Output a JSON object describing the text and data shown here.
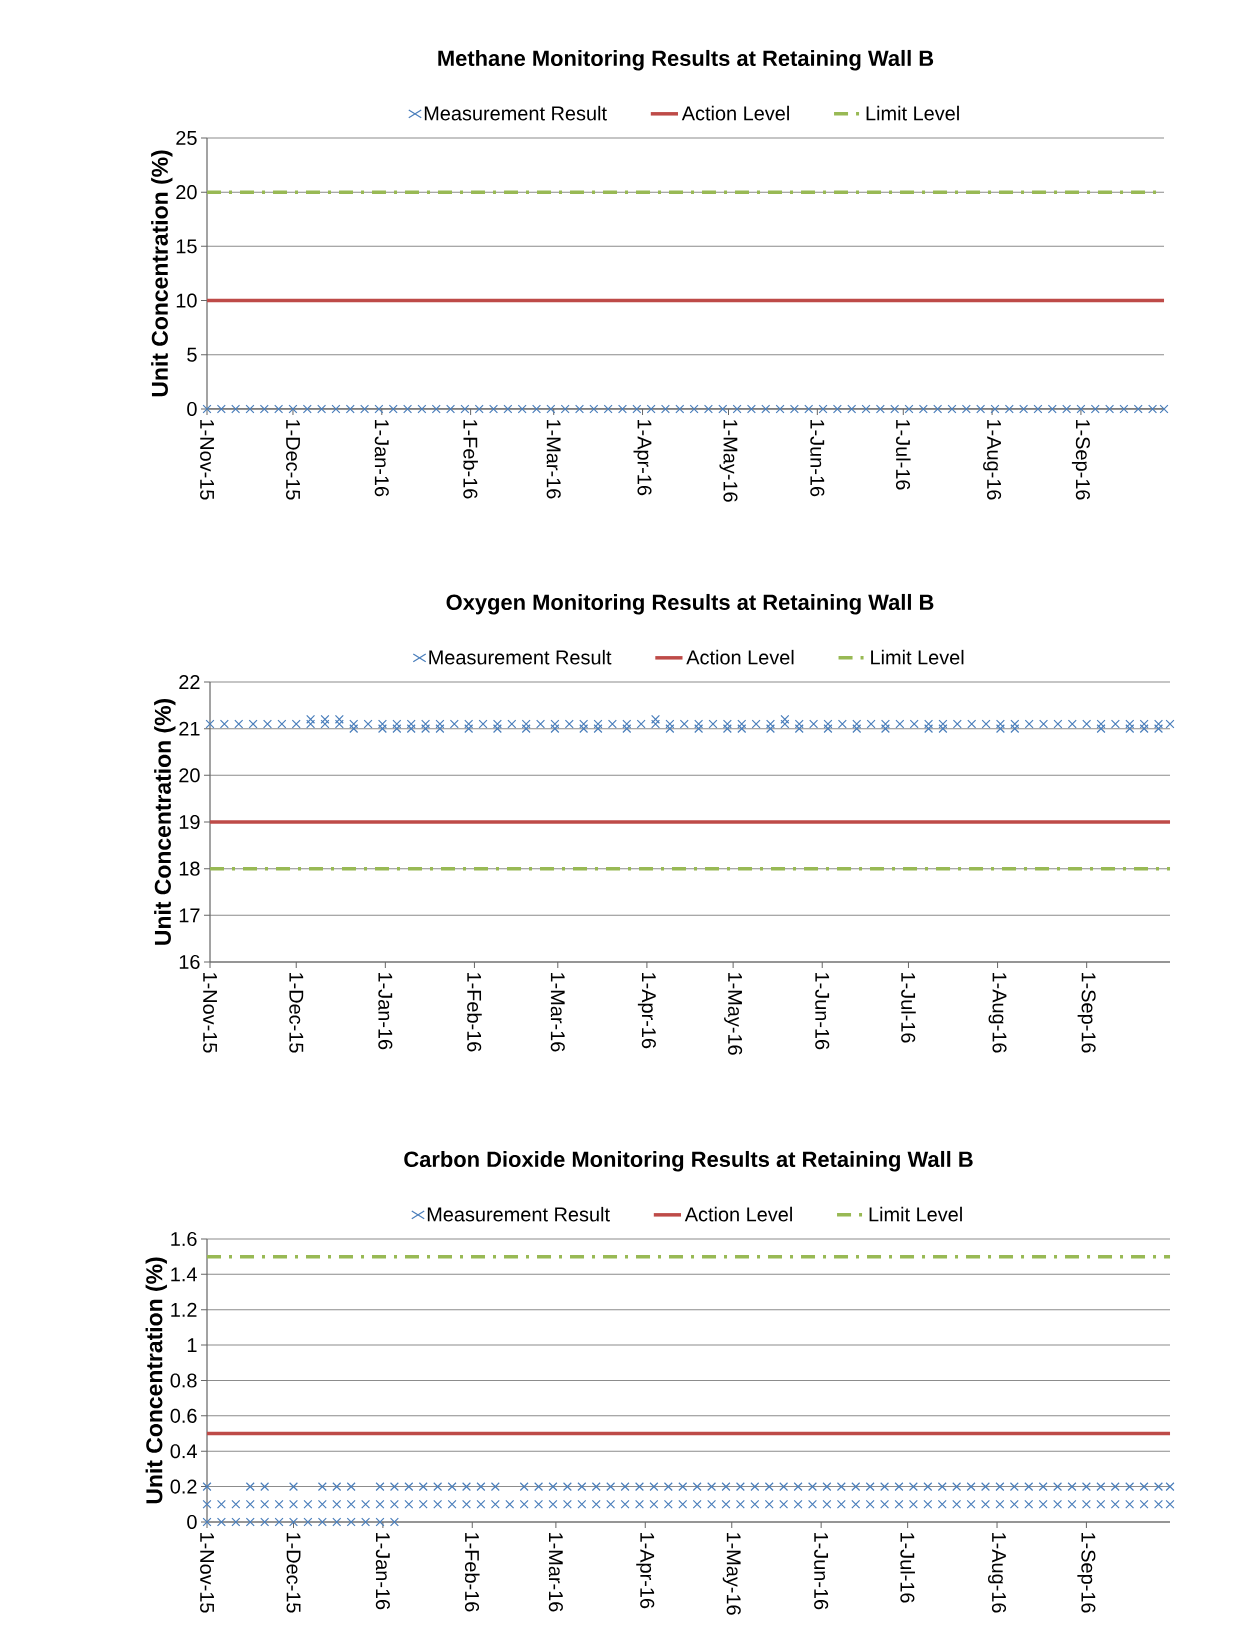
{
  "chart_data": [
    {
      "type": "scatter",
      "title": "Methane Monitoring Results at Retaining Wall B",
      "ylabel": "Unit Concentration (%)",
      "legend": "top",
      "grid": "y",
      "xlim": [
        "2015-11-01",
        "2016-09-30"
      ],
      "ylim": [
        0,
        25
      ],
      "yticks": [
        0,
        5,
        10,
        15,
        20,
        25
      ],
      "xticks": [
        {
          "value": "2015-11-01",
          "label": "1-Nov-15"
        },
        {
          "value": "2015-12-01",
          "label": "1-Dec-15"
        },
        {
          "value": "2016-01-01",
          "label": "1-Jan-16"
        },
        {
          "value": "2016-02-01",
          "label": "1-Feb-16"
        },
        {
          "value": "2016-03-01",
          "label": "1-Mar-16"
        },
        {
          "value": "2016-04-01",
          "label": "1-Apr-16"
        },
        {
          "value": "2016-05-01",
          "label": "1-May-16"
        },
        {
          "value": "2016-06-01",
          "label": "1-Jun-16"
        },
        {
          "value": "2016-07-01",
          "label": "1-Jul-16"
        },
        {
          "value": "2016-08-01",
          "label": "1-Aug-16"
        },
        {
          "value": "2016-09-01",
          "label": "1-Sep-16"
        }
      ],
      "series": [
        {
          "name": "Measurement Result",
          "color": "#4a7ebb",
          "marker": "cross",
          "x": [
            "2015-11-01",
            "2015-11-06",
            "2015-11-11",
            "2015-11-16",
            "2015-11-21",
            "2015-11-26",
            "2015-12-01",
            "2015-12-06",
            "2015-12-11",
            "2015-12-16",
            "2015-12-21",
            "2015-12-26",
            "2015-12-31",
            "2016-01-05",
            "2016-01-10",
            "2016-01-15",
            "2016-01-20",
            "2016-01-25",
            "2016-01-30",
            "2016-02-04",
            "2016-02-09",
            "2016-02-14",
            "2016-02-19",
            "2016-02-24",
            "2016-02-29",
            "2016-03-05",
            "2016-03-10",
            "2016-03-15",
            "2016-03-20",
            "2016-03-25",
            "2016-03-30",
            "2016-04-04",
            "2016-04-09",
            "2016-04-14",
            "2016-04-19",
            "2016-04-24",
            "2016-04-29",
            "2016-05-04",
            "2016-05-09",
            "2016-05-14",
            "2016-05-19",
            "2016-05-24",
            "2016-05-29",
            "2016-06-03",
            "2016-06-08",
            "2016-06-13",
            "2016-06-18",
            "2016-06-23",
            "2016-06-28",
            "2016-07-03",
            "2016-07-08",
            "2016-07-13",
            "2016-07-18",
            "2016-07-23",
            "2016-07-28",
            "2016-08-02",
            "2016-08-07",
            "2016-08-12",
            "2016-08-17",
            "2016-08-22",
            "2016-08-27",
            "2016-09-01",
            "2016-09-06",
            "2016-09-11",
            "2016-09-16",
            "2016-09-21",
            "2016-09-26",
            "2016-09-30"
          ],
          "values": [
            0,
            0,
            0,
            0,
            0,
            0,
            0,
            0,
            0,
            0,
            0,
            0,
            0,
            0,
            0,
            0,
            0,
            0,
            0,
            0,
            0,
            0,
            0,
            0,
            0,
            0,
            0,
            0,
            0,
            0,
            0,
            0,
            0,
            0,
            0,
            0,
            0,
            0,
            0,
            0,
            0,
            0,
            0,
            0,
            0,
            0,
            0,
            0,
            0,
            0,
            0,
            0,
            0,
            0,
            0,
            0,
            0,
            0,
            0,
            0,
            0,
            0,
            0,
            0,
            0,
            0,
            0,
            0
          ]
        },
        {
          "name": "Action Level",
          "type": "line",
          "color": "#be4b48",
          "line_style": "solid",
          "x": [
            "2015-11-01",
            "2016-09-30"
          ],
          "values": [
            10,
            10
          ]
        },
        {
          "name": "Limit Level",
          "type": "line",
          "color": "#98b954",
          "line_style": "dashed",
          "x": [
            "2015-11-01",
            "2016-09-30"
          ],
          "values": [
            20,
            20
          ]
        }
      ]
    },
    {
      "type": "scatter",
      "title": "Oxygen Monitoring Results at Retaining Wall B",
      "ylabel": "Unit Concentration (%)",
      "legend": "top",
      "grid": "y",
      "xlim": [
        "2015-11-01",
        "2016-09-30"
      ],
      "ylim": [
        16,
        22
      ],
      "yticks": [
        16,
        17,
        18,
        19,
        20,
        21,
        22
      ],
      "xticks": [
        {
          "value": "2015-11-01",
          "label": "1-Nov-15"
        },
        {
          "value": "2015-12-01",
          "label": "1-Dec-15"
        },
        {
          "value": "2016-01-01",
          "label": "1-Jan-16"
        },
        {
          "value": "2016-02-01",
          "label": "1-Feb-16"
        },
        {
          "value": "2016-03-01",
          "label": "1-Mar-16"
        },
        {
          "value": "2016-04-01",
          "label": "1-Apr-16"
        },
        {
          "value": "2016-05-01",
          "label": "1-May-16"
        },
        {
          "value": "2016-06-01",
          "label": "1-Jun-16"
        },
        {
          "value": "2016-07-01",
          "label": "1-Jul-16"
        },
        {
          "value": "2016-08-01",
          "label": "1-Aug-16"
        },
        {
          "value": "2016-09-01",
          "label": "1-Sep-16"
        }
      ],
      "series": [
        {
          "name": "Measurement Result",
          "type": "scatter",
          "color": "#4a7ebb",
          "marker": "cross",
          "x": [
            "2015-11-01",
            "2015-11-06",
            "2015-11-11",
            "2015-11-16",
            "2015-11-21",
            "2015-11-26",
            "2015-12-01",
            "2015-12-06",
            "2015-12-11",
            "2015-12-16",
            "2015-12-21",
            "2015-12-26",
            "2015-12-31",
            "2016-01-05",
            "2016-01-10",
            "2016-01-15",
            "2016-01-20",
            "2016-01-25",
            "2016-01-30",
            "2016-02-04",
            "2016-02-09",
            "2016-02-14",
            "2016-02-19",
            "2016-02-24",
            "2016-02-29",
            "2016-03-05",
            "2016-03-10",
            "2016-03-15",
            "2016-03-20",
            "2016-03-25",
            "2016-03-30",
            "2016-04-04",
            "2016-04-09",
            "2016-04-14",
            "2016-04-19",
            "2016-04-24",
            "2016-04-29",
            "2016-05-04",
            "2016-05-09",
            "2016-05-14",
            "2016-05-19",
            "2016-05-24",
            "2016-05-29",
            "2016-06-03",
            "2016-06-08",
            "2016-06-13",
            "2016-06-18",
            "2016-06-23",
            "2016-06-28",
            "2016-07-03",
            "2016-07-08",
            "2016-07-13",
            "2016-07-18",
            "2016-07-23",
            "2016-07-28",
            "2016-08-02",
            "2016-08-07",
            "2016-08-12",
            "2016-08-17",
            "2016-08-22",
            "2016-08-27",
            "2016-09-01",
            "2016-09-06",
            "2016-09-11",
            "2016-09-16",
            "2016-09-21",
            "2016-09-26",
            "2016-09-30",
            "2015-12-06",
            "2015-12-11",
            "2015-12-16",
            "2016-04-04",
            "2016-05-19",
            "2015-12-21",
            "2015-12-31",
            "2016-01-05",
            "2016-01-10",
            "2016-01-15",
            "2016-01-20",
            "2016-01-30",
            "2016-02-09",
            "2016-02-19",
            "2016-02-29",
            "2016-03-10",
            "2016-03-15",
            "2016-03-25",
            "2016-04-09",
            "2016-04-19",
            "2016-04-29",
            "2016-05-04",
            "2016-05-14",
            "2016-05-24",
            "2016-06-03",
            "2016-06-13",
            "2016-06-23",
            "2016-07-08",
            "2016-07-13",
            "2016-08-02",
            "2016-08-07",
            "2016-09-06",
            "2016-09-16",
            "2016-09-21",
            "2016-09-26"
          ],
          "values": [
            21.1,
            21.1,
            21.1,
            21.1,
            21.1,
            21.1,
            21.1,
            21.1,
            21.1,
            21.1,
            21.1,
            21.1,
            21.1,
            21.1,
            21.1,
            21.1,
            21.1,
            21.1,
            21.1,
            21.1,
            21.1,
            21.1,
            21.1,
            21.1,
            21.1,
            21.1,
            21.1,
            21.1,
            21.1,
            21.1,
            21.1,
            21.1,
            21.1,
            21.1,
            21.1,
            21.1,
            21.1,
            21.1,
            21.1,
            21.1,
            21.1,
            21.1,
            21.1,
            21.1,
            21.1,
            21.1,
            21.1,
            21.1,
            21.1,
            21.1,
            21.1,
            21.1,
            21.1,
            21.1,
            21.1,
            21.1,
            21.1,
            21.1,
            21.1,
            21.1,
            21.1,
            21.1,
            21.1,
            21.1,
            21.1,
            21.1,
            21.1,
            21.1,
            21.2,
            21.2,
            21.2,
            21.2,
            21.2,
            21,
            21,
            21,
            21,
            21,
            21,
            21,
            21,
            21,
            21,
            21,
            21,
            21,
            21,
            21,
            21,
            21,
            21,
            21,
            21,
            21,
            21,
            21,
            21,
            21,
            21,
            21,
            21,
            21,
            21
          ]
        },
        {
          "name": "Action Level",
          "type": "line",
          "color": "#be4b48",
          "line_style": "solid",
          "x": [
            "2015-11-01",
            "2016-09-30"
          ],
          "values": [
            19,
            19
          ]
        },
        {
          "name": "Limit Level",
          "type": "line",
          "color": "#98b954",
          "line_style": "dashed",
          "x": [
            "2015-11-01",
            "2016-09-30"
          ],
          "values": [
            18,
            18
          ]
        }
      ]
    },
    {
      "type": "scatter",
      "title": "Carbon Dioxide Monitoring Results at Retaining Wall B",
      "ylabel": "Unit Concentration (%)",
      "legend": "top",
      "grid": "y",
      "xlim": [
        "2015-11-01",
        "2016-09-30"
      ],
      "ylim": [
        0,
        1.6
      ],
      "yticks": [
        0,
        0.2,
        0.4,
        0.6,
        0.8,
        1,
        1.2,
        1.4,
        1.6
      ],
      "xticks": [
        {
          "value": "2015-11-01",
          "label": "1-Nov-15"
        },
        {
          "value": "2015-12-01",
          "label": "1-Dec-15"
        },
        {
          "value": "2016-01-01",
          "label": "1-Jan-16"
        },
        {
          "value": "2016-02-01",
          "label": "1-Feb-16"
        },
        {
          "value": "2016-03-01",
          "label": "1-Mar-16"
        },
        {
          "value": "2016-04-01",
          "label": "1-Apr-16"
        },
        {
          "value": "2016-05-01",
          "label": "1-May-16"
        },
        {
          "value": "2016-06-01",
          "label": "1-Jun-16"
        },
        {
          "value": "2016-07-01",
          "label": "1-Jul-16"
        },
        {
          "value": "2016-08-01",
          "label": "1-Aug-16"
        },
        {
          "value": "2016-09-01",
          "label": "1-Sep-16"
        }
      ],
      "series": [
        {
          "name": "Measurement Result",
          "type": "scatter",
          "color": "#4a7ebb",
          "marker": "cross",
          "x": [
            "2015-11-01",
            "2015-11-06",
            "2015-11-11",
            "2015-11-16",
            "2015-11-21",
            "2015-11-26",
            "2015-12-01",
            "2015-12-06",
            "2015-12-11",
            "2015-12-16",
            "2015-12-21",
            "2015-12-26",
            "2015-12-31",
            "2016-01-05",
            "2016-01-10",
            "2016-01-15",
            "2016-01-20",
            "2016-01-25",
            "2016-01-30",
            "2016-02-04",
            "2016-02-09",
            "2016-02-14",
            "2016-02-19",
            "2016-02-24",
            "2016-02-29",
            "2016-03-05",
            "2016-03-10",
            "2016-03-15",
            "2016-03-20",
            "2016-03-25",
            "2016-03-30",
            "2016-04-04",
            "2016-04-09",
            "2016-04-14",
            "2016-04-19",
            "2016-04-24",
            "2016-04-29",
            "2016-05-04",
            "2016-05-09",
            "2016-05-14",
            "2016-05-19",
            "2016-05-24",
            "2016-05-29",
            "2016-06-03",
            "2016-06-08",
            "2016-06-13",
            "2016-06-18",
            "2016-06-23",
            "2016-06-28",
            "2016-07-03",
            "2016-07-08",
            "2016-07-13",
            "2016-07-18",
            "2016-07-23",
            "2016-07-28",
            "2016-08-02",
            "2016-08-07",
            "2016-08-12",
            "2016-08-17",
            "2016-08-22",
            "2016-08-27",
            "2016-09-01",
            "2016-09-06",
            "2016-09-11",
            "2016-09-16",
            "2016-09-21",
            "2016-09-26",
            "2016-09-30",
            "2015-11-01",
            "2015-11-06",
            "2015-11-11",
            "2015-11-16",
            "2015-11-21",
            "2015-11-26",
            "2015-12-01",
            "2015-12-06",
            "2015-12-11",
            "2015-12-16",
            "2015-12-21",
            "2015-12-26",
            "2015-12-31",
            "2016-01-05",
            "2015-11-01",
            "2015-11-16",
            "2015-11-21",
            "2015-12-01",
            "2015-12-11",
            "2015-12-16",
            "2015-12-21",
            "2015-12-31",
            "2016-01-05",
            "2016-01-10",
            "2016-01-15",
            "2016-01-20",
            "2016-01-25",
            "2016-01-30",
            "2016-02-04",
            "2016-02-09",
            "2016-02-19",
            "2016-02-24",
            "2016-02-29",
            "2016-03-05",
            "2016-03-10",
            "2016-03-15",
            "2016-03-20",
            "2016-03-25",
            "2016-03-30",
            "2016-04-04",
            "2016-04-09",
            "2016-04-14",
            "2016-04-19",
            "2016-04-24",
            "2016-04-29",
            "2016-05-04",
            "2016-05-09",
            "2016-05-14",
            "2016-05-19",
            "2016-05-24",
            "2016-05-29",
            "2016-06-03",
            "2016-06-08",
            "2016-06-13",
            "2016-06-18",
            "2016-06-23",
            "2016-06-28",
            "2016-07-03",
            "2016-07-08",
            "2016-07-13",
            "2016-07-18",
            "2016-07-23",
            "2016-07-28",
            "2016-08-02",
            "2016-08-07",
            "2016-08-12",
            "2016-08-17",
            "2016-08-22",
            "2016-08-27",
            "2016-09-01",
            "2016-09-06",
            "2016-09-11",
            "2016-09-16",
            "2016-09-21",
            "2016-09-26",
            "2016-09-30"
          ],
          "values": [
            0.1,
            0.1,
            0.1,
            0.1,
            0.1,
            0.1,
            0.1,
            0.1,
            0.1,
            0.1,
            0.1,
            0.1,
            0.1,
            0.1,
            0.1,
            0.1,
            0.1,
            0.1,
            0.1,
            0.1,
            0.1,
            0.1,
            0.1,
            0.1,
            0.1,
            0.1,
            0.1,
            0.1,
            0.1,
            0.1,
            0.1,
            0.1,
            0.1,
            0.1,
            0.1,
            0.1,
            0.1,
            0.1,
            0.1,
            0.1,
            0.1,
            0.1,
            0.1,
            0.1,
            0.1,
            0.1,
            0.1,
            0.1,
            0.1,
            0.1,
            0.1,
            0.1,
            0.1,
            0.1,
            0.1,
            0.1,
            0.1,
            0.1,
            0.1,
            0.1,
            0.1,
            0.1,
            0.1,
            0.1,
            0.1,
            0.1,
            0.1,
            0.1,
            0,
            0,
            0,
            0,
            0,
            0,
            0,
            0,
            0,
            0,
            0,
            0,
            0,
            0,
            0.2,
            0.2,
            0.2,
            0.2,
            0.2,
            0.2,
            0.2,
            0.2,
            0.2,
            0.2,
            0.2,
            0.2,
            0.2,
            0.2,
            0.2,
            0.2,
            0.2,
            0.2,
            0.2,
            0.2,
            0.2,
            0.2,
            0.2,
            0.2,
            0.2,
            0.2,
            0.2,
            0.2,
            0.2,
            0.2,
            0.2,
            0.2,
            0.2,
            0.2,
            0.2,
            0.2,
            0.2,
            0.2,
            0.2,
            0.2,
            0.2,
            0.2,
            0.2,
            0.2,
            0.2,
            0.2,
            0.2,
            0.2,
            0.2,
            0.2,
            0.2,
            0.2,
            0.2,
            0.2,
            0.2,
            0.2,
            0.2,
            0.2,
            0.2,
            0.2,
            0.2,
            0.2
          ]
        },
        {
          "name": "Action Level",
          "type": "line",
          "color": "#be4b48",
          "line_style": "solid",
          "x": [
            "2015-11-01",
            "2016-09-30"
          ],
          "values": [
            0.5,
            0.5
          ]
        },
        {
          "name": "Limit Level",
          "type": "line",
          "color": "#98b954",
          "line_style": "dashed",
          "x": [
            "2015-11-01",
            "2016-09-30"
          ],
          "values": [
            1.5,
            1.5
          ]
        }
      ]
    }
  ]
}
